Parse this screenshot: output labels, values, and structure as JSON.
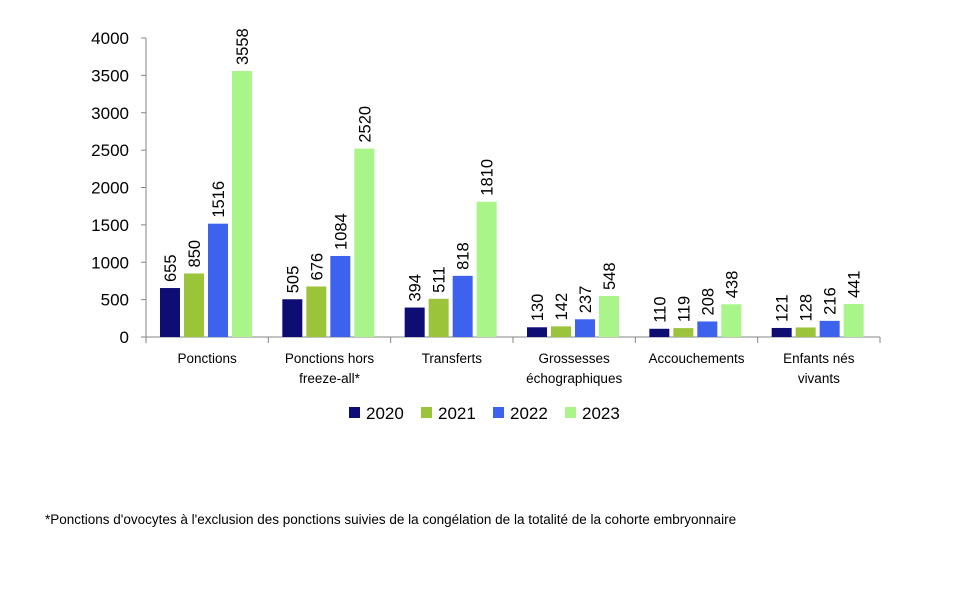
{
  "chart_data": {
    "type": "bar",
    "categories": [
      [
        "Ponctions"
      ],
      [
        "Ponctions hors",
        "freeze-all*"
      ],
      [
        "Transferts"
      ],
      [
        "Grossesses",
        "échographiques"
      ],
      [
        "Accouchements"
      ],
      [
        "Enfants nés",
        "vivants"
      ]
    ],
    "series": [
      {
        "name": "2020",
        "color": "#0d0d73",
        "values": [
          655,
          505,
          394,
          130,
          110,
          121
        ]
      },
      {
        "name": "2021",
        "color": "#9cc43a",
        "values": [
          850,
          676,
          511,
          142,
          119,
          128
        ]
      },
      {
        "name": "2022",
        "color": "#3d63ee",
        "values": [
          1516,
          1084,
          818,
          237,
          208,
          216
        ]
      },
      {
        "name": "2023",
        "color": "#a9f58a",
        "values": [
          3558,
          2520,
          1810,
          548,
          438,
          441
        ]
      }
    ],
    "ylim": [
      0,
      4000
    ],
    "yticks": [
      0,
      500,
      1000,
      1500,
      2000,
      2500,
      3000,
      3500,
      4000
    ],
    "grid": false,
    "legend_position": "bottom"
  },
  "footnote": "*Ponctions d'ovocytes à l'exclusion des ponctions suivies de la congélation de la totalité de la cohorte embryonnaire"
}
